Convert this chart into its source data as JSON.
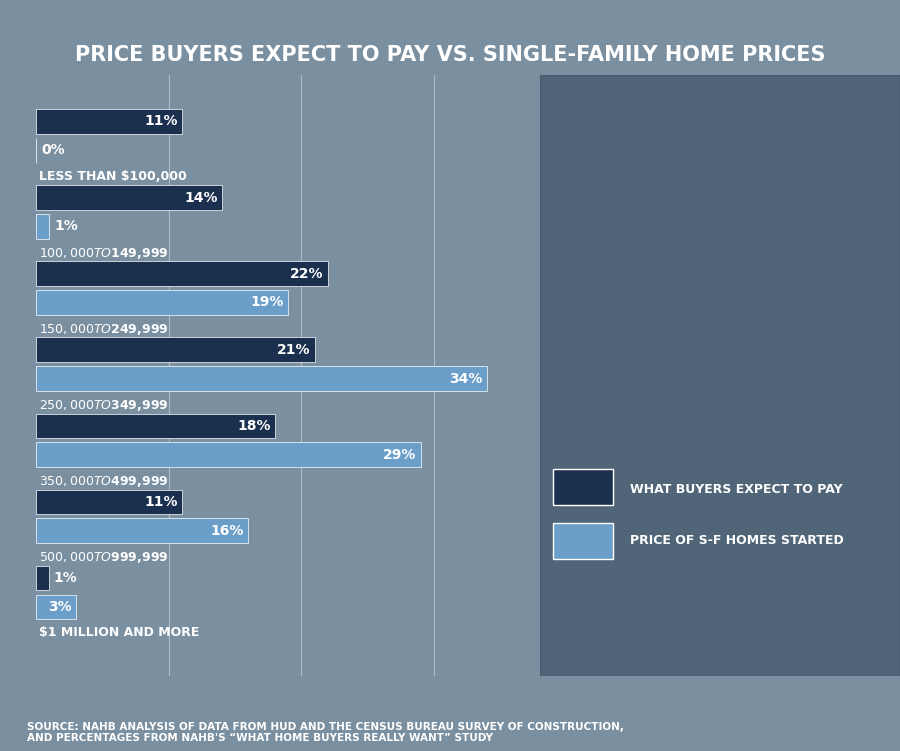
{
  "title": "PRICE BUYERS EXPECT TO PAY VS. SINGLE-FAMILY HOME PRICES",
  "categories": [
    "LESS THAN $100,000",
    "$100,000 TO $149,999",
    "$150,000 TO $249,999",
    "$250,000 TO $349,999",
    "$350,000 TO $499,999",
    "$500,000 TO $999,999",
    "$1 MILLION AND MORE"
  ],
  "buyers_expect": [
    11,
    14,
    22,
    21,
    18,
    11,
    1
  ],
  "homes_started": [
    0,
    1,
    19,
    34,
    29,
    16,
    3
  ],
  "dark_blue": "#1b2f4e",
  "light_blue": "#6b9fc9",
  "bg_color": "#7a8fa0",
  "bg_right_color": "#4a5f72",
  "title_color": "#ffffff",
  "label_color": "#ffffff",
  "source_text": "SOURCE: NAHB ANALYSIS OF DATA FROM HUD AND THE CENSUS BUREAU SURVEY OF CONSTRUCTION,\nAND PERCENTAGES FROM NAHB'S “WHAT HOME BUYERS REALLY WANT” STUDY",
  "legend_dark_label": "WHAT BUYERS EXPECT TO PAY",
  "legend_light_label": "PRICE OF S-F HOMES STARTED",
  "xlim": [
    0,
    38
  ],
  "bar_height": 0.32,
  "bar_gap": 0.06,
  "title_fontsize": 15,
  "cat_fontsize": 9,
  "pct_fontsize": 10,
  "source_fontsize": 7.5,
  "legend_fontsize": 9
}
